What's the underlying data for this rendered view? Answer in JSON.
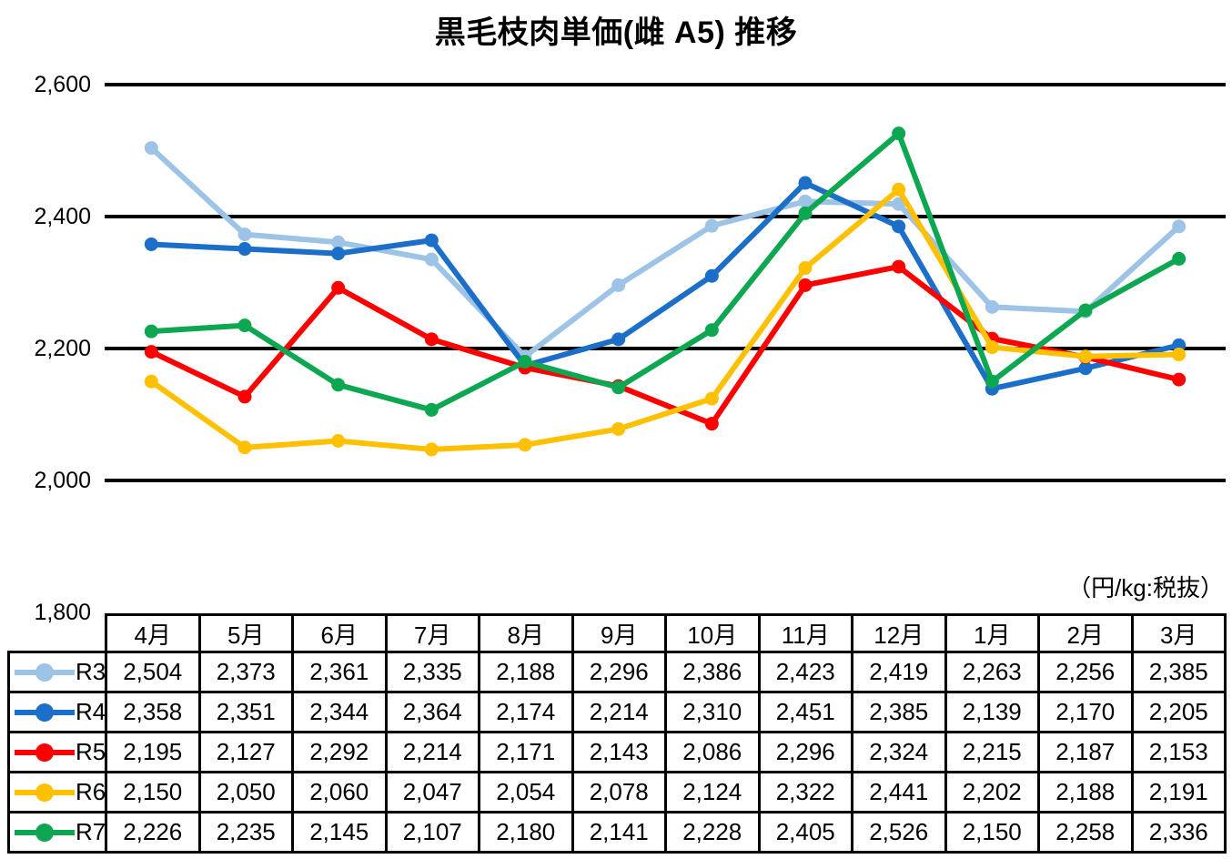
{
  "title": "黒毛枝肉単価(雌 A5) 推移",
  "unit_note": "（円/kg:税抜）",
  "chart_data": {
    "type": "line",
    "title": "黒毛枝肉単価(雌 A5) 推移",
    "categories": [
      "4月",
      "5月",
      "6月",
      "7月",
      "8月",
      "9月",
      "10月",
      "11月",
      "12月",
      "1月",
      "2月",
      "3月"
    ],
    "series": [
      {
        "name": "R3",
        "color": "#9DC3E6",
        "values": [
          2504,
          2373,
          2361,
          2335,
          2188,
          2296,
          2386,
          2423,
          2419,
          2263,
          2256,
          2385
        ]
      },
      {
        "name": "R4",
        "color": "#1C6FC8",
        "values": [
          2358,
          2351,
          2344,
          2364,
          2174,
          2214,
          2310,
          2451,
          2385,
          2139,
          2170,
          2205
        ]
      },
      {
        "name": "R5",
        "color": "#FF0000",
        "values": [
          2195,
          2127,
          2292,
          2214,
          2171,
          2143,
          2086,
          2296,
          2324,
          2215,
          2187,
          2153
        ]
      },
      {
        "name": "R6",
        "color": "#FFC000",
        "values": [
          2150,
          2050,
          2060,
          2047,
          2054,
          2078,
          2124,
          2322,
          2441,
          2202,
          2188,
          2191
        ]
      },
      {
        "name": "R7",
        "color": "#0CA750",
        "values": [
          2226,
          2235,
          2145,
          2107,
          2180,
          2141,
          2228,
          2405,
          2526,
          2150,
          2258,
          2336
        ]
      }
    ],
    "xlabel": "",
    "ylabel": "",
    "unit_note": "（円/kg:税抜）",
    "ylim": [
      1800,
      2600
    ],
    "y_ticks": [
      {
        "value": 2600,
        "label": "2,600"
      },
      {
        "value": 2400,
        "label": "2,400"
      },
      {
        "value": 2200,
        "label": "2,200"
      },
      {
        "value": 2000,
        "label": "2,000"
      },
      {
        "value": 1800,
        "label": "1,800"
      }
    ],
    "grid": "horizontal",
    "gridline_color": "#000000",
    "markers": true,
    "legend_position": "data-table-left-column"
  }
}
